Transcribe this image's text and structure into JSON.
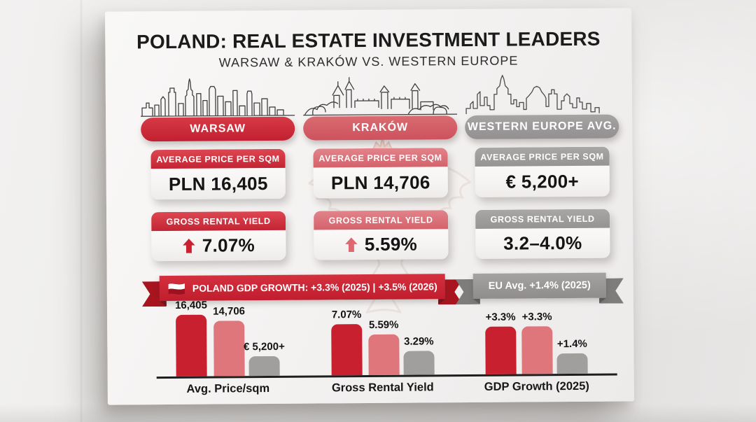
{
  "poster": {
    "title": "POLAND: REAL ESTATE INVESTMENT LEADERS",
    "subtitle": "WARSAW & KRAKÓW VS. WESTERN EUROPE",
    "columns": [
      {
        "name": "WARSAW",
        "price_card": {
          "label": "AVERAGE PRICE PER SQM",
          "value": "PLN 16,405"
        },
        "yield_card": {
          "label": "GROSS RENTAL YIELD",
          "value": "7.07%",
          "trend_icon": "arrow-up-icon"
        }
      },
      {
        "name": "KRAKÓW",
        "price_card": {
          "label": "AVERAGE PRICE PER SQM",
          "value": "PLN 14,706"
        },
        "yield_card": {
          "label": "GROSS RENTAL YIELD",
          "value": "5.59%",
          "trend_icon": "arrow-up-icon"
        }
      },
      {
        "name": "WESTERN EUROPE AVG.",
        "price_card": {
          "label": "AVERAGE PRICE PER SQM",
          "value": "€ 5,200+"
        },
        "yield_card": {
          "label": "GROSS RENTAL YIELD",
          "value": "3.2–4.0%",
          "trend_icon": null
        }
      }
    ],
    "ribbons": [
      {
        "text": "POLAND GDP GROWTH: +3.3% (2025) | +3.5% (2026)",
        "icon": "poland-flag-icon",
        "theme": "red"
      },
      {
        "text": "EU Avg. +1.4% (2025)",
        "icon": null,
        "theme": "gray"
      }
    ],
    "chart_data": {
      "type": "bar",
      "series": [
        "Warsaw",
        "Kraków",
        "Western Europe Avg."
      ],
      "series_colors": [
        "#c9202f",
        "#df767b",
        "#a19f9e"
      ],
      "groups": [
        {
          "category": "Avg. Price/sqm",
          "bars": [
            {
              "series": "Warsaw",
              "value": 16405,
              "label": "16,405"
            },
            {
              "series": "Kraków",
              "value": 14706,
              "label": "14,706"
            },
            {
              "series": "Western Europe Avg.",
              "value": 5200,
              "label": "€ 5,200+"
            }
          ]
        },
        {
          "category": "Gross Rental Yield",
          "bars": [
            {
              "series": "Warsaw",
              "value": 7.07,
              "label": "7.07%"
            },
            {
              "series": "Kraków",
              "value": 5.59,
              "label": "5.59%"
            },
            {
              "series": "Western Europe Avg.",
              "value": 3.29,
              "label": "3.29%"
            }
          ]
        },
        {
          "category": "GDP Growth (2025)",
          "bars": [
            {
              "series": "Warsaw",
              "value": 3.3,
              "label": "+3.3%"
            },
            {
              "series": "Kraków",
              "value": 3.3,
              "label": "+3.3%"
            },
            {
              "series": "Western Europe Avg.",
              "value": 1.4,
              "label": "+1.4%"
            }
          ]
        }
      ],
      "legend_position": "none",
      "grid": false,
      "ylabel": "",
      "xlabel": ""
    },
    "colors": {
      "warsaw_red": "#c9202f",
      "krakow_salmon": "#df767b",
      "western_gray": "#a19f9e",
      "text_dark": "#141414"
    }
  }
}
